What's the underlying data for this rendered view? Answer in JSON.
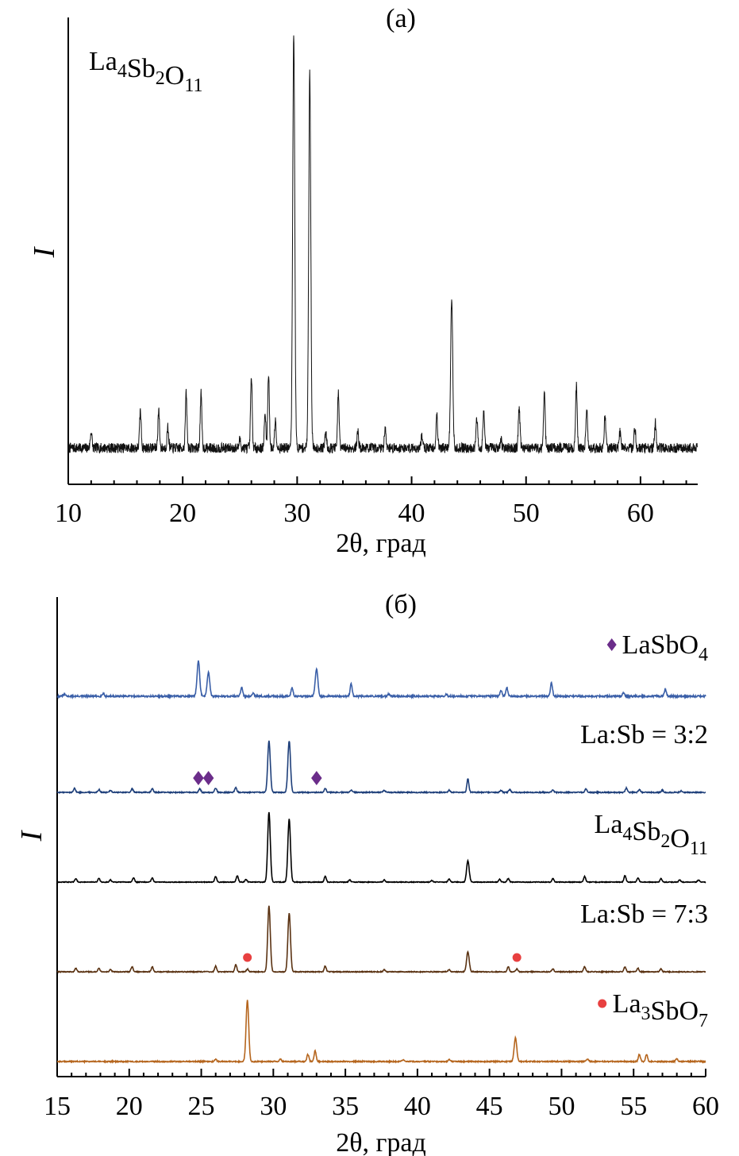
{
  "chart_data": [
    {
      "panel": "(a)",
      "type": "line",
      "xlabel": "2θ, град",
      "ylabel": "I",
      "xlim": [
        10,
        65
      ],
      "xticks": [
        "10",
        "20",
        "30",
        "40",
        "50",
        "60"
      ],
      "grid": false,
      "annotation": {
        "label": "La4Sb2O11",
        "parts": [
          [
            "La",
            ""
          ],
          [
            "4",
            "sub"
          ],
          [
            "Sb",
            ""
          ],
          [
            "2",
            "sub"
          ],
          [
            "O",
            ""
          ],
          [
            "11",
            "sub"
          ]
        ]
      },
      "series": [
        {
          "label": "La4Sb2O11",
          "color": "#111111",
          "baseline": 0.03,
          "noise": 0.012,
          "peaks": [
            [
              12.0,
              0.04
            ],
            [
              16.3,
              0.09
            ],
            [
              17.9,
              0.09
            ],
            [
              18.7,
              0.05
            ],
            [
              20.3,
              0.13
            ],
            [
              21.6,
              0.13
            ],
            [
              25.0,
              0.02
            ],
            [
              26.0,
              0.17
            ],
            [
              27.2,
              0.08
            ],
            [
              27.5,
              0.18
            ],
            [
              28.1,
              0.07
            ],
            [
              29.7,
              1.0
            ],
            [
              31.1,
              0.9
            ],
            [
              32.5,
              0.04
            ],
            [
              33.6,
              0.13
            ],
            [
              35.3,
              0.04
            ],
            [
              37.7,
              0.05
            ],
            [
              40.9,
              0.03
            ],
            [
              42.2,
              0.08
            ],
            [
              43.5,
              0.36
            ],
            [
              45.7,
              0.07
            ],
            [
              46.3,
              0.09
            ],
            [
              47.8,
              0.02
            ],
            [
              49.4,
              0.1
            ],
            [
              51.6,
              0.14
            ],
            [
              54.4,
              0.15
            ],
            [
              55.3,
              0.1
            ],
            [
              56.9,
              0.08
            ],
            [
              58.2,
              0.04
            ],
            [
              59.5,
              0.05
            ],
            [
              61.3,
              0.06
            ]
          ]
        }
      ]
    },
    {
      "panel": "(б)",
      "type": "line",
      "xlabel": "2θ, град",
      "ylabel": "I",
      "xlim": [
        15,
        60
      ],
      "xticks": [
        "15",
        "20",
        "25",
        "30",
        "35",
        "40",
        "45",
        "50",
        "55",
        "60"
      ],
      "grid": false,
      "marker_colors": {
        "diamond": "#6b2d8a",
        "circle": "#e84040"
      },
      "series": [
        {
          "label": "LaSbO4",
          "label_parts": [
            [
              "LaSbO",
              ""
            ],
            [
              "4",
              "sub"
            ]
          ],
          "label_marker": "diamond",
          "color": "#3a5fa8",
          "offset": 4,
          "baseline": 0.09,
          "noise": 0.012,
          "peaks": [
            [
              15.5,
              0.03
            ],
            [
              18.2,
              0.04
            ],
            [
              24.8,
              0.5
            ],
            [
              25.5,
              0.33
            ],
            [
              27.8,
              0.12
            ],
            [
              28.6,
              0.05
            ],
            [
              31.3,
              0.12
            ],
            [
              33.0,
              0.38
            ],
            [
              35.4,
              0.17
            ],
            [
              38.0,
              0.03
            ],
            [
              42.0,
              0.03
            ],
            [
              45.8,
              0.08
            ],
            [
              46.2,
              0.12
            ],
            [
              49.3,
              0.19
            ],
            [
              54.3,
              0.05
            ],
            [
              57.2,
              0.09
            ]
          ]
        },
        {
          "label": "La:Sb = 3:2",
          "color": "#1e3f7a",
          "offset": 3,
          "baseline": 0.0,
          "noise": 0.007,
          "markers": [
            {
              "shape": "diamond",
              "x": 24.8
            },
            {
              "shape": "diamond",
              "x": 25.5
            },
            {
              "shape": "diamond",
              "x": 33.0
            }
          ],
          "peaks": [
            [
              16.2,
              0.06
            ],
            [
              17.9,
              0.04
            ],
            [
              18.7,
              0.03
            ],
            [
              20.2,
              0.05
            ],
            [
              21.6,
              0.05
            ],
            [
              24.9,
              0.05
            ],
            [
              26.0,
              0.06
            ],
            [
              27.4,
              0.07
            ],
            [
              29.7,
              0.72
            ],
            [
              31.1,
              0.72
            ],
            [
              33.6,
              0.06
            ],
            [
              35.4,
              0.03
            ],
            [
              37.7,
              0.03
            ],
            [
              42.2,
              0.03
            ],
            [
              43.5,
              0.19
            ],
            [
              45.8,
              0.03
            ],
            [
              46.4,
              0.04
            ],
            [
              49.4,
              0.03
            ],
            [
              51.7,
              0.05
            ],
            [
              54.5,
              0.06
            ],
            [
              55.4,
              0.04
            ],
            [
              57.0,
              0.03
            ],
            [
              58.3,
              0.02
            ]
          ]
        },
        {
          "label": "La4Sb2O11",
          "label_parts": [
            [
              "La",
              ""
            ],
            [
              "4",
              "sub"
            ],
            [
              "Sb",
              ""
            ],
            [
              "2",
              "sub"
            ],
            [
              "O",
              ""
            ],
            [
              "11",
              "sub"
            ]
          ],
          "color": "#000000",
          "offset": 2,
          "baseline": 0.0,
          "noise": 0.005,
          "peaks": [
            [
              16.3,
              0.05
            ],
            [
              17.9,
              0.05
            ],
            [
              18.7,
              0.03
            ],
            [
              20.3,
              0.06
            ],
            [
              21.6,
              0.06
            ],
            [
              26.0,
              0.08
            ],
            [
              27.5,
              0.09
            ],
            [
              28.1,
              0.04
            ],
            [
              29.7,
              0.98
            ],
            [
              31.1,
              0.88
            ],
            [
              33.6,
              0.08
            ],
            [
              35.3,
              0.03
            ],
            [
              37.7,
              0.03
            ],
            [
              41.0,
              0.02
            ],
            [
              42.2,
              0.04
            ],
            [
              43.5,
              0.3
            ],
            [
              45.7,
              0.04
            ],
            [
              46.3,
              0.05
            ],
            [
              49.4,
              0.05
            ],
            [
              51.6,
              0.08
            ],
            [
              54.4,
              0.09
            ],
            [
              55.3,
              0.06
            ],
            [
              56.9,
              0.05
            ],
            [
              58.2,
              0.03
            ],
            [
              59.5,
              0.03
            ]
          ]
        },
        {
          "label": "La:Sb = 7:3",
          "color": "#5a3212",
          "offset": 1,
          "baseline": 0.0,
          "noise": 0.006,
          "markers": [
            {
              "shape": "circle",
              "x": 28.2
            },
            {
              "shape": "circle",
              "x": 46.9
            }
          ],
          "peaks": [
            [
              16.3,
              0.05
            ],
            [
              17.9,
              0.05
            ],
            [
              18.7,
              0.03
            ],
            [
              20.2,
              0.07
            ],
            [
              21.6,
              0.07
            ],
            [
              26.0,
              0.08
            ],
            [
              27.4,
              0.1
            ],
            [
              28.2,
              0.04
            ],
            [
              29.7,
              0.92
            ],
            [
              31.1,
              0.82
            ],
            [
              33.6,
              0.08
            ],
            [
              37.7,
              0.03
            ],
            [
              42.2,
              0.03
            ],
            [
              43.5,
              0.28
            ],
            [
              46.3,
              0.07
            ],
            [
              46.9,
              0.04
            ],
            [
              49.4,
              0.04
            ],
            [
              51.6,
              0.07
            ],
            [
              54.4,
              0.07
            ],
            [
              55.3,
              0.05
            ],
            [
              56.9,
              0.04
            ]
          ]
        },
        {
          "label": "La3SbO7",
          "label_parts": [
            [
              "La",
              ""
            ],
            [
              "3",
              "sub"
            ],
            [
              "SbO",
              ""
            ],
            [
              "7",
              "sub"
            ]
          ],
          "label_marker": "circle",
          "color": "#b5651d",
          "offset": 0,
          "baseline": 0.0,
          "noise": 0.008,
          "peaks": [
            [
              26.0,
              0.03
            ],
            [
              28.2,
              0.86
            ],
            [
              30.5,
              0.03
            ],
            [
              32.4,
              0.1
            ],
            [
              32.9,
              0.15
            ],
            [
              39.0,
              0.02
            ],
            [
              42.2,
              0.03
            ],
            [
              46.8,
              0.33
            ],
            [
              51.8,
              0.04
            ],
            [
              55.4,
              0.1
            ],
            [
              55.9,
              0.1
            ],
            [
              58.0,
              0.04
            ]
          ]
        }
      ]
    }
  ]
}
